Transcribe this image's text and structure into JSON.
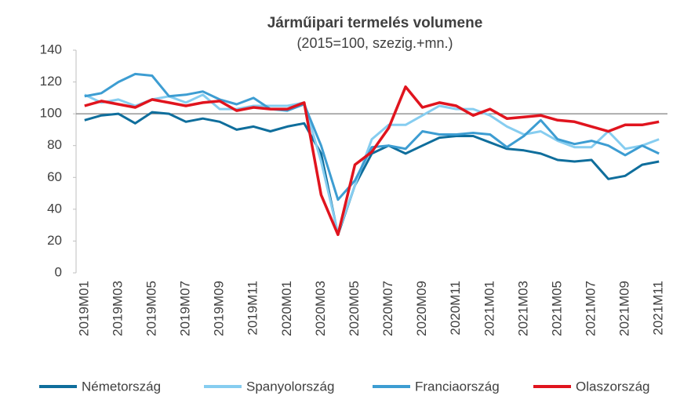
{
  "chart_data": {
    "type": "line",
    "title": "Járműipari termelés volumene",
    "subtitle": "(2015=100, szezig.+mn.)",
    "categories": [
      "2019M01",
      null,
      "2019M03",
      null,
      "2019M05",
      null,
      "2019M07",
      null,
      "2019M09",
      null,
      "2019M11",
      null,
      "2020M01",
      null,
      "2020M03",
      null,
      "2020M05",
      null,
      "2020M07",
      null,
      "2020M09",
      null,
      "2020M11",
      null,
      "2021M01",
      null,
      "2021M03",
      null,
      "2021M05",
      null,
      "2021M07",
      null,
      "2021M09",
      null,
      "2021M11"
    ],
    "series": [
      {
        "name": "Németország",
        "color": "#0f6e9c",
        "values": [
          96,
          99,
          100,
          94,
          101,
          100,
          95,
          97,
          95,
          90,
          92,
          89,
          92,
          94,
          75,
          24,
          55,
          75,
          80,
          75,
          80,
          85,
          86,
          86,
          82,
          78,
          77,
          75,
          71,
          70,
          71,
          59,
          61,
          68,
          70
        ]
      },
      {
        "name": "Spanyolország",
        "color": "#86cdf0",
        "values": [
          112,
          107,
          109,
          105,
          109,
          111,
          107,
          112,
          103,
          103,
          105,
          105,
          105,
          107,
          70,
          25,
          55,
          84,
          93,
          93,
          99,
          105,
          103,
          103,
          99,
          92,
          87,
          89,
          83,
          79,
          79,
          89,
          78,
          80,
          84
        ]
      },
      {
        "name": "Franciaország",
        "color": "#3d9dd2",
        "values": [
          111,
          113,
          120,
          125,
          124,
          111,
          112,
          114,
          109,
          106,
          110,
          103,
          102,
          106,
          80,
          46,
          58,
          79,
          80,
          78,
          89,
          87,
          87,
          88,
          87,
          79,
          86,
          96,
          84,
          81,
          83,
          80,
          74,
          80,
          75
        ]
      },
      {
        "name": "Olaszország",
        "color": "#e0141e",
        "values": [
          105,
          108,
          106,
          104,
          109,
          107,
          105,
          107,
          108,
          102,
          104,
          103,
          103,
          107,
          49,
          24,
          68,
          76,
          91,
          117,
          104,
          107,
          105,
          99,
          103,
          97,
          98,
          99,
          96,
          95,
          92,
          89,
          93,
          93,
          95
        ]
      }
    ],
    "ylim": [
      0,
      140
    ],
    "yticks": [
      0,
      20,
      40,
      60,
      80,
      100,
      120,
      140
    ],
    "reference_line": 100,
    "legend": "bottom"
  }
}
